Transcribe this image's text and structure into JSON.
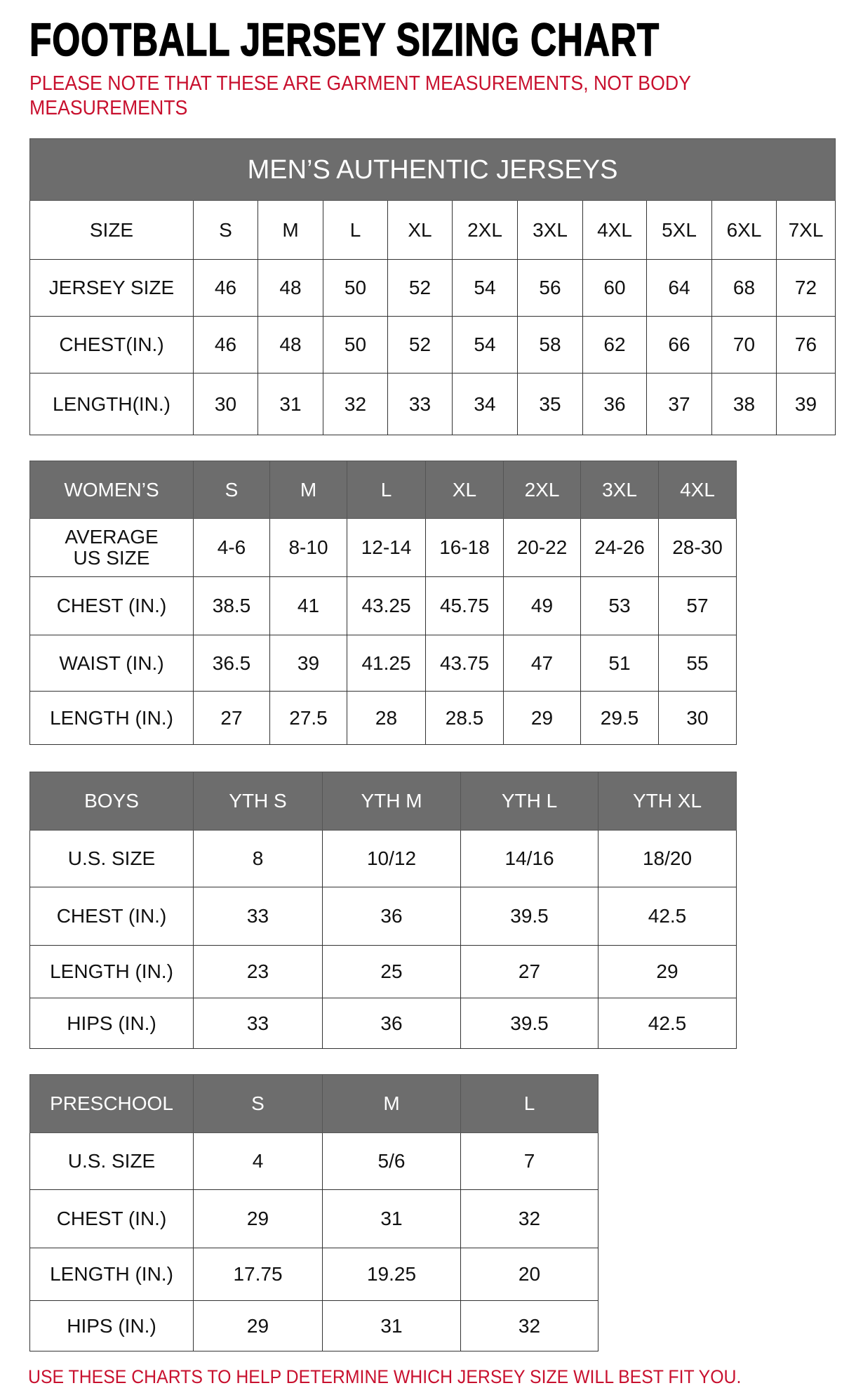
{
  "title": "FOOTBALL JERSEY SIZING CHART",
  "note": "PLEASE NOTE THAT THESE ARE GARMENT MEASUREMENTS, NOT BODY MEASUREMENTS",
  "footer": "USE THESE CHARTS TO HELP DETERMINE WHICH JERSEY SIZE WILL BEST FIT YOU.",
  "colors": {
    "header_bg": "#6d6d6d",
    "note_red": "#c8102e"
  },
  "tables": [
    {
      "banner": "MEN’S AUTHENTIC JERSEYS",
      "header": [
        "SIZE",
        "S",
        "M",
        "L",
        "XL",
        "2XL",
        "3XL",
        "4XL",
        "5XL",
        "6XL",
        "7XL"
      ],
      "header_in_gray": false,
      "rows": [
        [
          "JERSEY SIZE",
          "46",
          "48",
          "50",
          "52",
          "54",
          "56",
          "60",
          "64",
          "68",
          "72"
        ],
        [
          "CHEST(IN.)",
          "46",
          "48",
          "50",
          "52",
          "54",
          "58",
          "62",
          "66",
          "70",
          "76"
        ],
        [
          "LENGTH(IN.)",
          "30",
          "31",
          "32",
          "33",
          "34",
          "35",
          "36",
          "37",
          "38",
          "39"
        ]
      ]
    },
    {
      "header": [
        "WOMEN’S",
        "S",
        "M",
        "L",
        "XL",
        "2XL",
        "3XL",
        "4XL"
      ],
      "header_in_gray": true,
      "rows": [
        [
          "AVERAGE\nUS SIZE",
          "4-6",
          "8-10",
          "12-14",
          "16-18",
          "20-22",
          "24-26",
          "28-30"
        ],
        [
          "CHEST (IN.)",
          "38.5",
          "41",
          "43.25",
          "45.75",
          "49",
          "53",
          "57"
        ],
        [
          "WAIST (IN.)",
          "36.5",
          "39",
          "41.25",
          "43.75",
          "47",
          "51",
          "55"
        ],
        [
          "LENGTH (IN.)",
          "27",
          "27.5",
          "28",
          "28.5",
          "29",
          "29.5",
          "30"
        ]
      ]
    },
    {
      "header": [
        "BOYS",
        "YTH S",
        "YTH M",
        "YTH L",
        "YTH XL"
      ],
      "header_in_gray": true,
      "rows": [
        [
          "U.S. SIZE",
          "8",
          "10/12",
          "14/16",
          "18/20"
        ],
        [
          "CHEST (IN.)",
          "33",
          "36",
          "39.5",
          "42.5"
        ],
        [
          "LENGTH (IN.)",
          "23",
          "25",
          "27",
          "29"
        ],
        [
          "HIPS (IN.)",
          "33",
          "36",
          "39.5",
          "42.5"
        ]
      ]
    },
    {
      "header": [
        "PRESCHOOL",
        "S",
        "M",
        "L"
      ],
      "header_in_gray": true,
      "rows": [
        [
          "U.S. SIZE",
          "4",
          "5/6",
          "7"
        ],
        [
          "CHEST (IN.)",
          "29",
          "31",
          "32"
        ],
        [
          "LENGTH (IN.)",
          "17.75",
          "19.25",
          "20"
        ],
        [
          "HIPS (IN.)",
          "29",
          "31",
          "32"
        ]
      ]
    }
  ]
}
